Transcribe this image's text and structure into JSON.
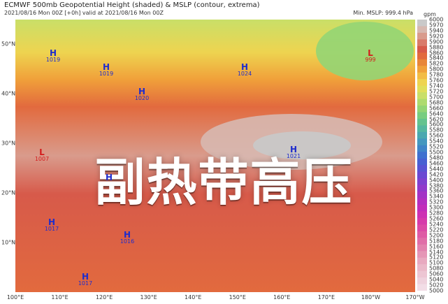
{
  "title": "ECMWF 500mb Geopotential Height (shaded) & MSLP (contour, extrema)",
  "subtitle": "2021/08/16 Mon 00Z [+0h] valid at 2021/08/16 Mon 00Z",
  "min_mslp": "Min. MSLP: 999.4 hPa",
  "overlay_text": "副热带高压",
  "x_ticks": [
    "100°E",
    "110°E",
    "120°E",
    "130°E",
    "140°E",
    "150°E",
    "160°E",
    "170°E",
    "180°W",
    "170°W"
  ],
  "y_ticks": [
    "50°N",
    "40°N",
    "30°N",
    "20°N",
    "10°N"
  ],
  "colorbar": {
    "unit": "gpm",
    "labels": [
      "6000",
      "5970",
      "5940",
      "5920",
      "5900",
      "5880",
      "5860",
      "5840",
      "5820",
      "5800",
      "5780",
      "5760",
      "5740",
      "5720",
      "5700",
      "5680",
      "5660",
      "5640",
      "5620",
      "5600",
      "5580",
      "5560",
      "5540",
      "5520",
      "5500",
      "5480",
      "5460",
      "5440",
      "5420",
      "5400",
      "5380",
      "5360",
      "5340",
      "5320",
      "5300",
      "5280",
      "5260",
      "5240",
      "5220",
      "5200",
      "5180",
      "5160",
      "5140",
      "5120",
      "5100",
      "5080",
      "5060",
      "5040",
      "5020",
      "5000"
    ],
    "colors": [
      "#c9c9c9",
      "#d7b8b0",
      "#d99b8c",
      "#d97a6a",
      "#d75a4a",
      "#e26a3e",
      "#e88638",
      "#f0a03a",
      "#f2bc45",
      "#eed450",
      "#e0df5a",
      "#c9df68",
      "#aedb6e",
      "#93d574",
      "#78cd80",
      "#63c38f",
      "#54b7a0",
      "#4aa8b0",
      "#4497bf",
      "#3f84c8",
      "#3e70cf",
      "#4760d2",
      "#5853d3",
      "#6a48d2",
      "#7e40cf",
      "#9139cb",
      "#a333c6",
      "#b32fc0",
      "#c12dba",
      "#cd31b3",
      "#d63aaa",
      "#db49a6",
      "#de5ba5",
      "#e06ea8",
      "#e282ae",
      "#e596b6",
      "#e8a9c0",
      "#eab8c9",
      "#edc6d3",
      "#efd2dd",
      "#f2dde6"
    ]
  },
  "extrema": [
    {
      "type": "H",
      "label": "H",
      "value": "1019"
    },
    {
      "type": "H",
      "label": "H",
      "value": "1019"
    },
    {
      "type": "H",
      "label": "H",
      "value": "1020"
    },
    {
      "type": "H",
      "label": "H",
      "value": "1024"
    },
    {
      "type": "L",
      "label": "L",
      "value": "999"
    },
    {
      "type": "L",
      "label": "L",
      "value": "1007"
    },
    {
      "type": "H",
      "label": "H",
      "value": "1021"
    },
    {
      "type": "H",
      "label": "H",
      "value": ""
    },
    {
      "type": "H",
      "label": "H",
      "value": "1017"
    },
    {
      "type": "H",
      "label": "H",
      "value": "1016"
    },
    {
      "type": "H",
      "label": "H",
      "value": "1017"
    }
  ]
}
